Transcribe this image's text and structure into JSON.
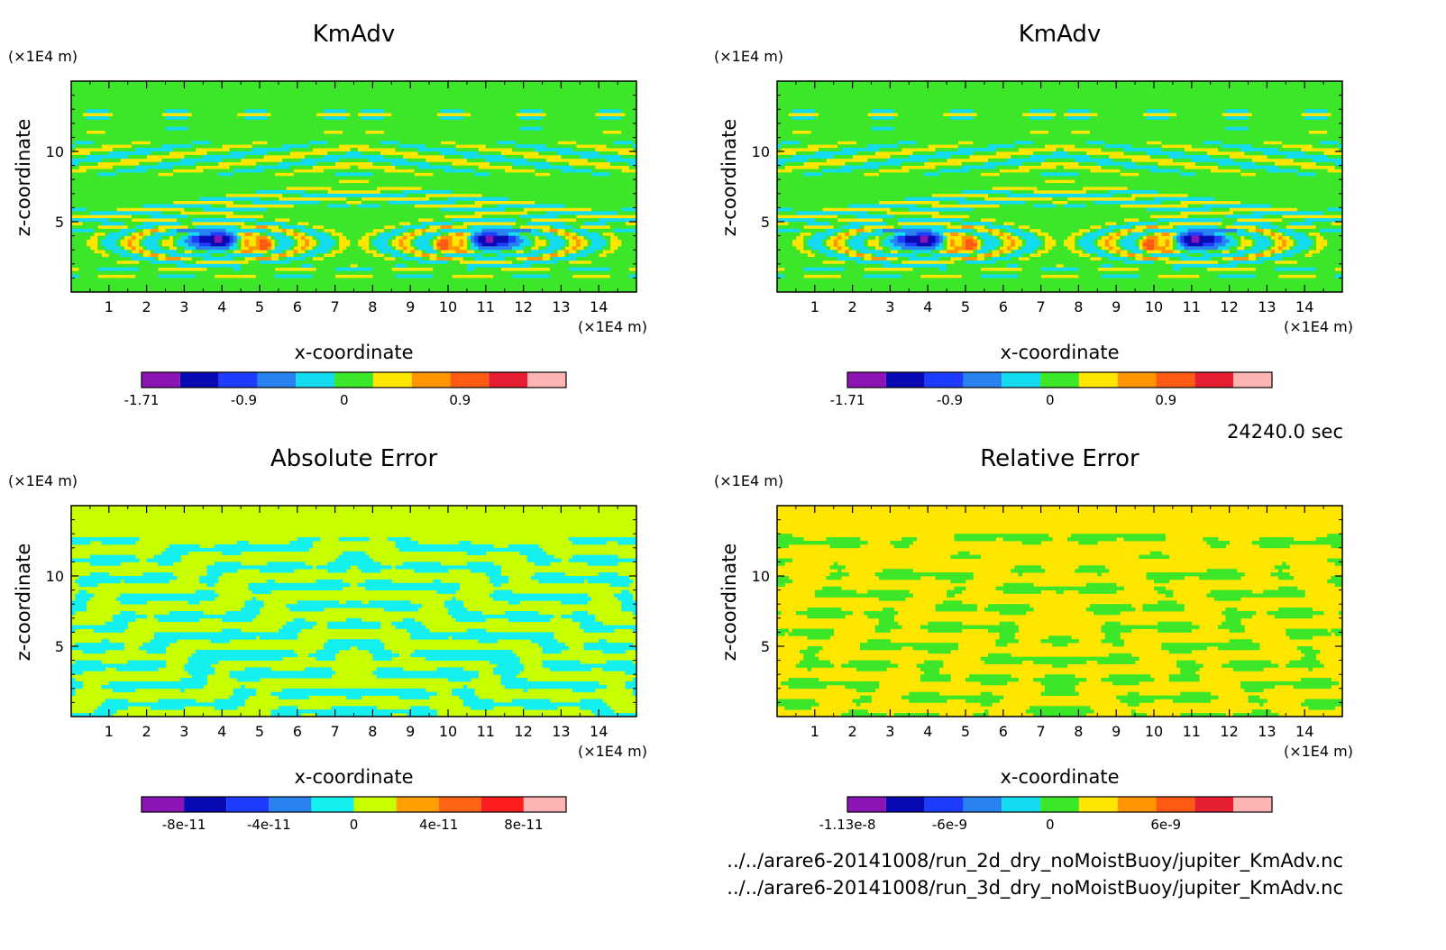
{
  "chart_data": [
    {
      "type": "heatmap",
      "title": "KmAdv",
      "xlabel": "x-coordinate",
      "ylabel": "z-coordinate",
      "x_unit": "(×1E4 m)",
      "y_unit": "(×1E4 m)",
      "xlim": [
        0,
        15
      ],
      "ylim": [
        0,
        15
      ],
      "x_ticks": [
        "1",
        "2",
        "3",
        "4",
        "5",
        "6",
        "7",
        "8",
        "9",
        "10",
        "11",
        "12",
        "13",
        "14"
      ],
      "y_ticks": [
        "5",
        "10"
      ],
      "colorbar": {
        "colors": [
          "#8c14b4",
          "#0a0ab4",
          "#1e3cff",
          "#2882f0",
          "#14dcf0",
          "#3ce628",
          "#ffe600",
          "#ff9600",
          "#ff5a14",
          "#e61e32",
          "#ffb4b4"
        ],
        "tick_labels": [
          "-1.71",
          "-0.9",
          "0",
          "0.9"
        ]
      },
      "background": "#ffe600",
      "pattern": "kmadv"
    },
    {
      "type": "heatmap",
      "title": "KmAdv",
      "xlabel": "x-coordinate",
      "ylabel": "z-coordinate",
      "x_unit": "(×1E4 m)",
      "y_unit": "(×1E4 m)",
      "xlim": [
        0,
        15
      ],
      "ylim": [
        0,
        15
      ],
      "x_ticks": [
        "1",
        "2",
        "3",
        "4",
        "5",
        "6",
        "7",
        "8",
        "9",
        "10",
        "11",
        "12",
        "13",
        "14"
      ],
      "y_ticks": [
        "5",
        "10"
      ],
      "colorbar": {
        "colors": [
          "#8c14b4",
          "#0a0ab4",
          "#1e3cff",
          "#2882f0",
          "#14dcf0",
          "#3ce628",
          "#ffe600",
          "#ff9600",
          "#ff5a14",
          "#e61e32",
          "#ffb4b4"
        ],
        "tick_labels": [
          "-1.71",
          "-0.9",
          "0",
          "0.9"
        ]
      },
      "background": "#ffe600",
      "pattern": "kmadv"
    },
    {
      "type": "heatmap",
      "title": "Absolute Error",
      "xlabel": "x-coordinate",
      "ylabel": "z-coordinate",
      "x_unit": "(×1E4 m)",
      "y_unit": "(×1E4 m)",
      "xlim": [
        0,
        15
      ],
      "ylim": [
        0,
        15
      ],
      "x_ticks": [
        "1",
        "2",
        "3",
        "4",
        "5",
        "6",
        "7",
        "8",
        "9",
        "10",
        "11",
        "12",
        "13",
        "14"
      ],
      "y_ticks": [
        "5",
        "10"
      ],
      "colorbar": {
        "colors": [
          "#8c14b4",
          "#0a0ab4",
          "#1e3cff",
          "#2882f0",
          "#14f0f0",
          "#c8ff00",
          "#ffa000",
          "#ff6414",
          "#ff1e1e",
          "#ffb4b4"
        ],
        "tick_labels": [
          "-8e-11",
          "-4e-11",
          "0",
          "4e-11",
          "8e-11"
        ]
      },
      "background": "#c8ff00",
      "pattern": "abs"
    },
    {
      "type": "heatmap",
      "title": "Relative Error",
      "xlabel": "x-coordinate",
      "ylabel": "z-coordinate",
      "x_unit": "(×1E4 m)",
      "y_unit": "(×1E4 m)",
      "xlim": [
        0,
        15
      ],
      "ylim": [
        0,
        15
      ],
      "x_ticks": [
        "1",
        "2",
        "3",
        "4",
        "5",
        "6",
        "7",
        "8",
        "9",
        "10",
        "11",
        "12",
        "13",
        "14"
      ],
      "y_ticks": [
        "5",
        "10"
      ],
      "colorbar": {
        "colors": [
          "#8c14b4",
          "#0a0ab4",
          "#1e3cff",
          "#2882f0",
          "#14dcf0",
          "#3ce628",
          "#ffe600",
          "#ff9600",
          "#ff5a14",
          "#e61e32",
          "#ffb4b4"
        ],
        "tick_labels": [
          "-1.13e-8",
          "-6e-9",
          "0",
          "6e-9"
        ]
      },
      "background": "#ffe600",
      "pattern": "rel"
    }
  ],
  "annotations": {
    "time": "24240.0 sec",
    "file_1": "../../arare6-20141008/run_2d_dry_noMoistBuoy/jupiter_KmAdv.nc",
    "file_2": "../../arare6-20141008/run_3d_dry_noMoistBuoy/jupiter_KmAdv.nc"
  }
}
